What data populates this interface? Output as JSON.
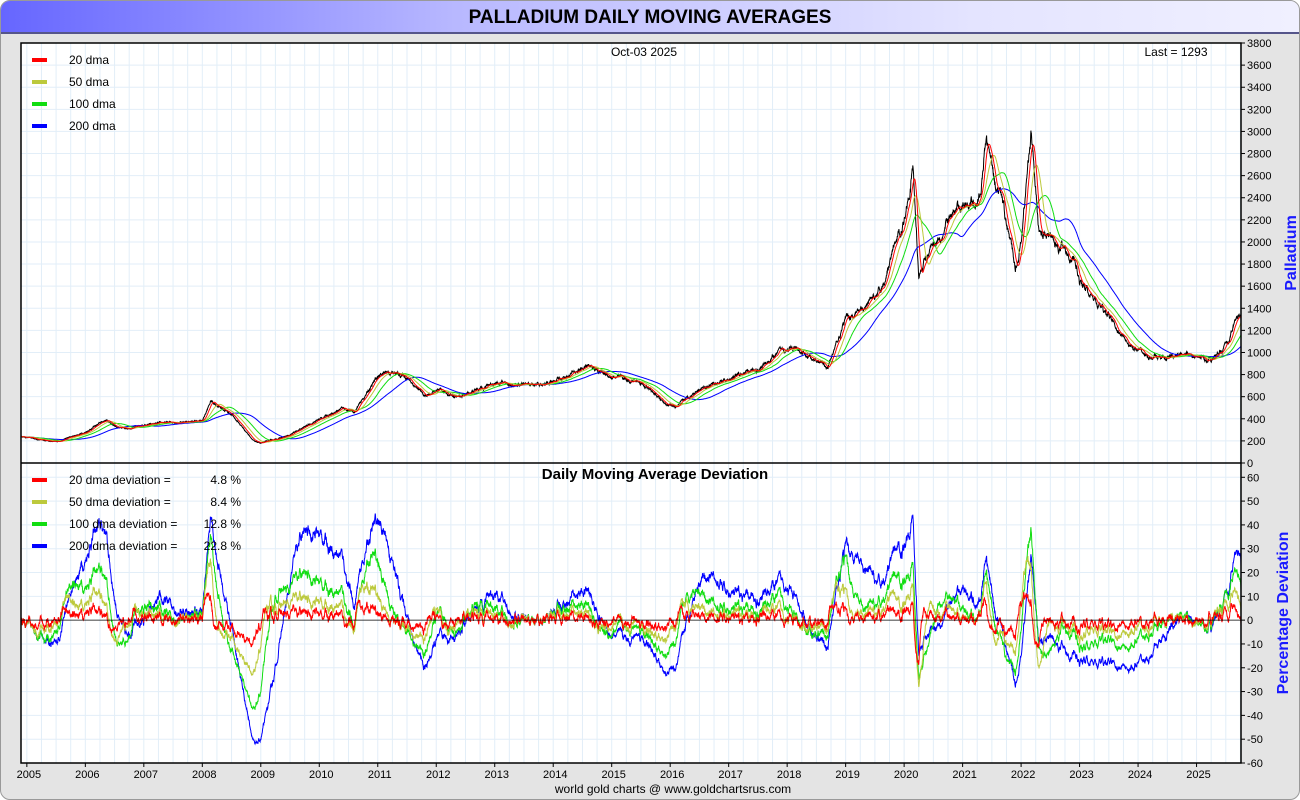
{
  "title": "PALLADIUM DAILY MOVING AVERAGES",
  "footer": "world gold charts @ www.goldchartsrus.com",
  "chart_data": [
    {
      "type": "line",
      "title": "",
      "date_label": "Oct-03  2025",
      "last_label": "Last = 1293",
      "ylabel": "Palladium",
      "ylim": [
        0,
        3800
      ],
      "yticks": [
        0,
        200,
        400,
        600,
        800,
        1000,
        1200,
        1400,
        1600,
        1800,
        2000,
        2200,
        2400,
        2600,
        2800,
        3000,
        3200,
        3400,
        3600,
        3800
      ],
      "xlim": [
        2004.9,
        2025.76
      ],
      "xticks": [
        "2005",
        "2006",
        "2007",
        "2008",
        "2009",
        "2010",
        "2011",
        "2012",
        "2013",
        "2014",
        "2015",
        "2016",
        "2017",
        "2018",
        "2019",
        "2020",
        "2021",
        "2022",
        "2023",
        "2024",
        "2025"
      ],
      "legend": [
        {
          "label": "20 dma",
          "color": "#ff0000",
          "window": 20
        },
        {
          "label": "50 dma",
          "color": "#bcc93c",
          "window": 50
        },
        {
          "label": "100 dma",
          "color": "#11dd11",
          "window": 100
        },
        {
          "label": "200 dma",
          "color": "#0000ff",
          "window": 200
        }
      ],
      "price_keypoints": [
        [
          2004.9,
          240
        ],
        [
          2005.5,
          190
        ],
        [
          2006.0,
          280
        ],
        [
          2006.35,
          390
        ],
        [
          2006.6,
          310
        ],
        [
          2007,
          340
        ],
        [
          2007.5,
          370
        ],
        [
          2008.0,
          380
        ],
        [
          2008.15,
          560
        ],
        [
          2008.5,
          440
        ],
        [
          2008.9,
          190
        ],
        [
          2009.0,
          180
        ],
        [
          2009.5,
          250
        ],
        [
          2009.9,
          370
        ],
        [
          2010.4,
          500
        ],
        [
          2010.6,
          460
        ],
        [
          2011.0,
          780
        ],
        [
          2011.15,
          830
        ],
        [
          2011.5,
          780
        ],
        [
          2011.8,
          600
        ],
        [
          2012,
          650
        ],
        [
          2012.4,
          600
        ],
        [
          2013,
          730
        ],
        [
          2013.5,
          700
        ],
        [
          2014,
          730
        ],
        [
          2014.6,
          880
        ],
        [
          2015.0,
          780
        ],
        [
          2015.5,
          730
        ],
        [
          2015.9,
          540
        ],
        [
          2016.1,
          500
        ],
        [
          2016.5,
          680
        ],
        [
          2017,
          750
        ],
        [
          2017.5,
          850
        ],
        [
          2018.0,
          1050
        ],
        [
          2018.3,
          980
        ],
        [
          2018.7,
          870
        ],
        [
          2019.0,
          1300
        ],
        [
          2019.3,
          1380
        ],
        [
          2019.6,
          1550
        ],
        [
          2020.0,
          2200
        ],
        [
          2020.15,
          2700
        ],
        [
          2020.25,
          1700
        ],
        [
          2020.5,
          2000
        ],
        [
          2021.0,
          2350
        ],
        [
          2021.3,
          2400
        ],
        [
          2021.4,
          2900
        ],
        [
          2021.7,
          2300
        ],
        [
          2021.9,
          1750
        ],
        [
          2022.0,
          2000
        ],
        [
          2022.17,
          3000
        ],
        [
          2022.3,
          2100
        ],
        [
          2022.6,
          2000
        ],
        [
          2022.9,
          1850
        ],
        [
          2023.0,
          1650
        ],
        [
          2023.3,
          1450
        ],
        [
          2023.6,
          1250
        ],
        [
          2023.9,
          1050
        ],
        [
          2024.2,
          950
        ],
        [
          2024.5,
          950
        ],
        [
          2024.8,
          1000
        ],
        [
          2025.0,
          950
        ],
        [
          2025.3,
          950
        ],
        [
          2025.55,
          1100
        ],
        [
          2025.65,
          1300
        ],
        [
          2025.76,
          1293
        ]
      ],
      "last": 1293
    },
    {
      "type": "line",
      "title": "Daily Moving Average Deviation",
      "ylabel": "Percentage Deviation",
      "ylim": [
        -60,
        66
      ],
      "yticks": [
        -60,
        -50,
        -40,
        -30,
        -20,
        -10,
        0,
        10,
        20,
        30,
        40,
        50,
        60
      ],
      "legend": [
        {
          "label": "20 dma deviation =",
          "value": "4.8 %",
          "color": "#ff0000"
        },
        {
          "label": "50 dma deviation =",
          "value": "8.4 %",
          "color": "#bcc93c"
        },
        {
          "label": "100 dma deviation =",
          "value": "12.8 %",
          "color": "#11dd11"
        },
        {
          "label": "200 dma deviation =",
          "value": "22.8 %",
          "color": "#0000ff"
        }
      ]
    }
  ]
}
